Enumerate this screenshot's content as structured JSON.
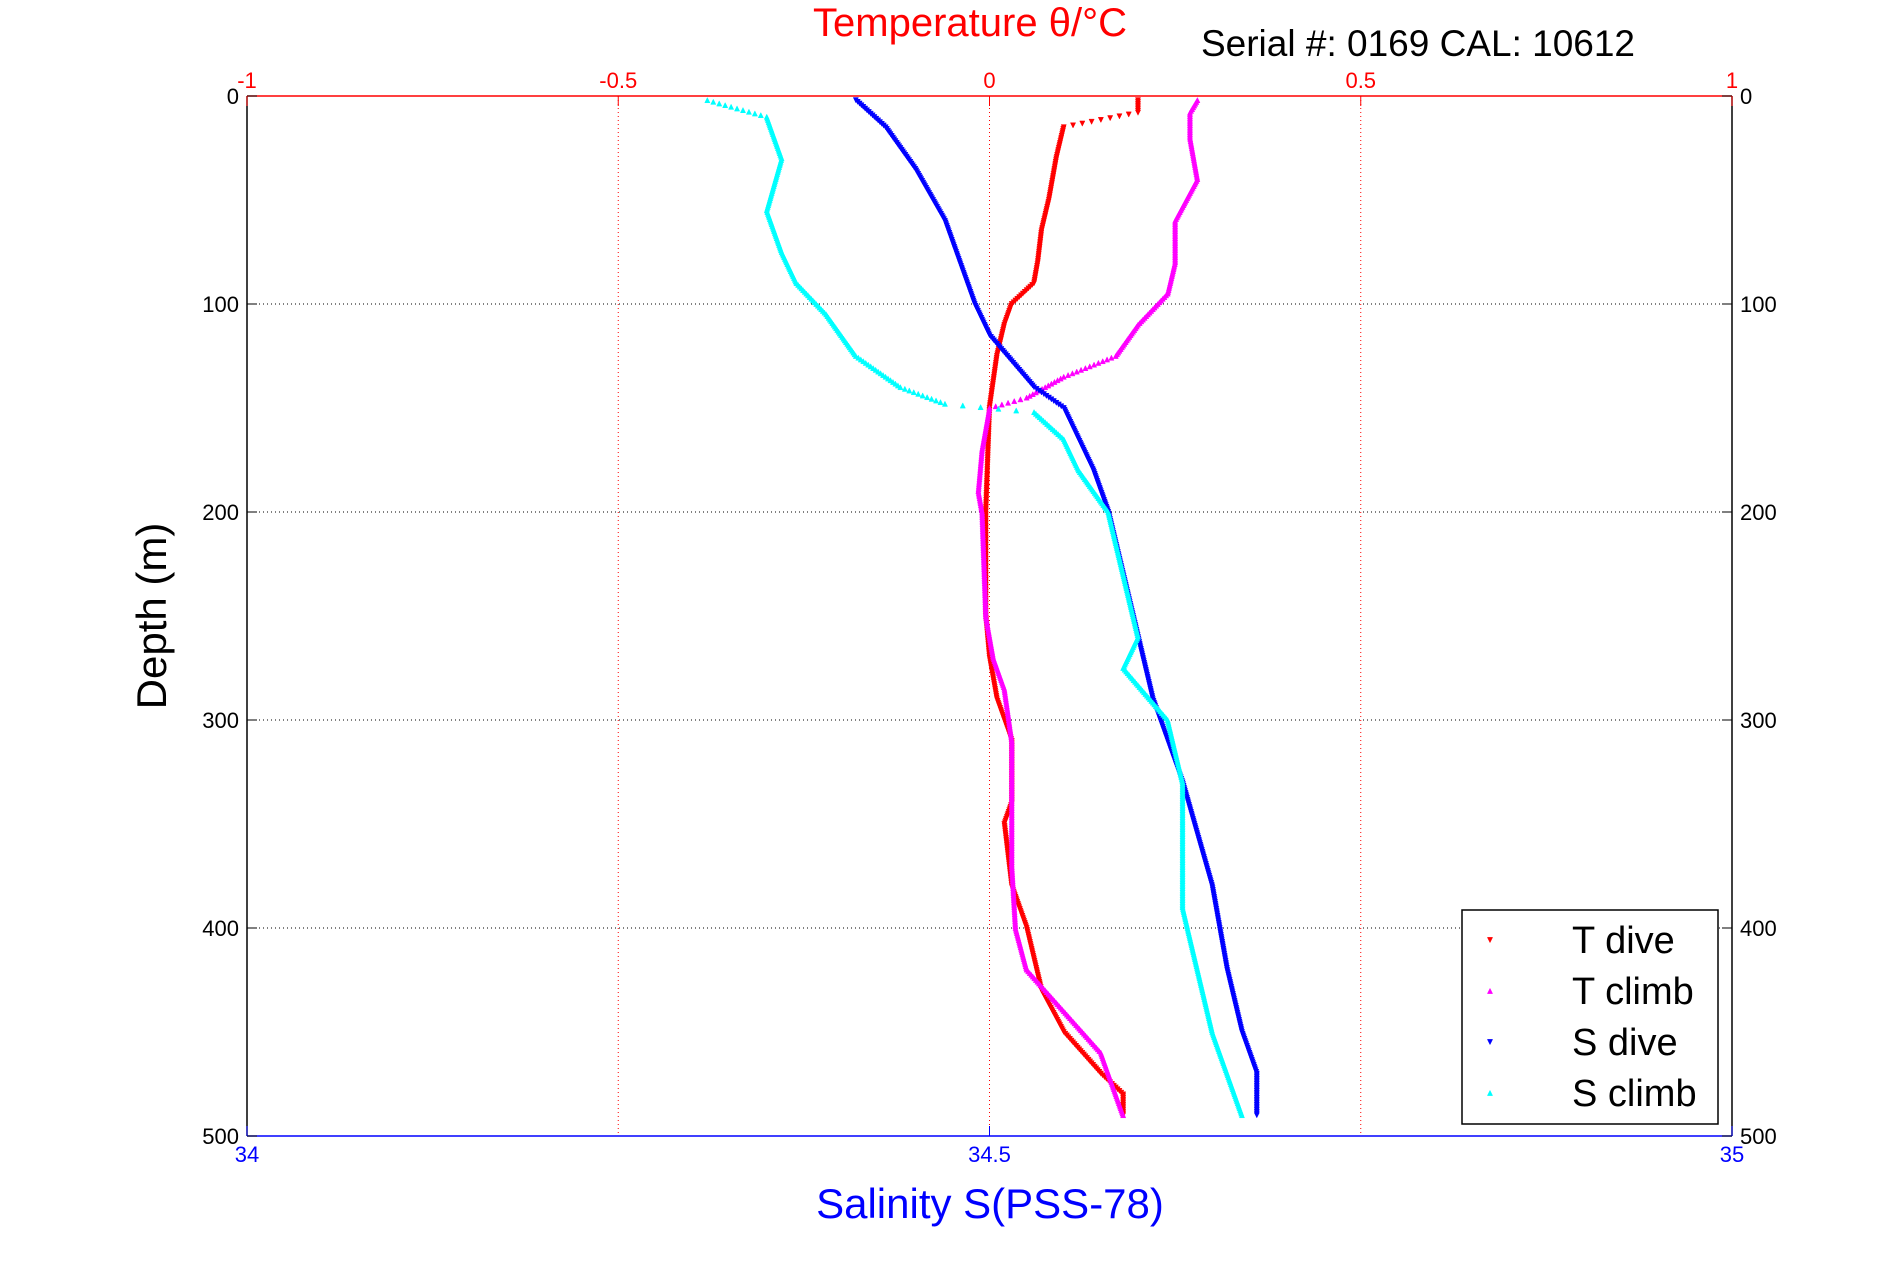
{
  "chart_data": {
    "type": "scatter",
    "title": "Temperature θ/°C",
    "subtitle": "Serial #: 0169 CAL: 10612",
    "ylabel": "Depth (m)",
    "xlabel_bottom": "Salinity S(PSS-78)",
    "xlabel_top": "Temperature θ/°C",
    "y_ticks": [
      "0",
      "100",
      "200",
      "300",
      "400",
      "500"
    ],
    "y_right_ticks": [
      "0",
      "100",
      "200",
      "300",
      "400",
      "500"
    ],
    "x_top_ticks": [
      "-1",
      "-0.5",
      "0",
      "0.5",
      "1"
    ],
    "x_bottom_ticks": [
      "34",
      "34.5",
      "35"
    ],
    "ylim": [
      0,
      500
    ],
    "y_reversed": true,
    "xlim_top": [
      -1,
      1
    ],
    "xlim_bottom": [
      34,
      35
    ],
    "grid": true,
    "legend_position": "bottom-right",
    "series": [
      {
        "name": "T dive",
        "axis": "top",
        "color": "#ff0000",
        "marker": "triangle-down",
        "points": [
          [
            0.2,
            2
          ],
          [
            0.2,
            8
          ],
          [
            0.1,
            15
          ],
          [
            0.09,
            30
          ],
          [
            0.08,
            50
          ],
          [
            0.07,
            65
          ],
          [
            0.065,
            80
          ],
          [
            0.06,
            90
          ],
          [
            0.03,
            100
          ],
          [
            0.02,
            110
          ],
          [
            0.01,
            125
          ],
          [
            0.0,
            150
          ],
          [
            -0.005,
            200
          ],
          [
            -0.005,
            250
          ],
          [
            0.0,
            270
          ],
          [
            0.01,
            290
          ],
          [
            0.03,
            310
          ],
          [
            0.03,
            340
          ],
          [
            0.02,
            350
          ],
          [
            0.03,
            380
          ],
          [
            0.05,
            400
          ],
          [
            0.07,
            430
          ],
          [
            0.1,
            450
          ],
          [
            0.15,
            470
          ],
          [
            0.18,
            480
          ],
          [
            0.18,
            490
          ]
        ]
      },
      {
        "name": "T climb",
        "axis": "top",
        "color": "#ff00ff",
        "marker": "triangle-up",
        "points": [
          [
            0.28,
            2
          ],
          [
            0.27,
            8
          ],
          [
            0.27,
            20
          ],
          [
            0.28,
            40
          ],
          [
            0.25,
            60
          ],
          [
            0.25,
            80
          ],
          [
            0.24,
            95
          ],
          [
            0.2,
            110
          ],
          [
            0.17,
            125
          ],
          [
            0.1,
            135
          ],
          [
            0.05,
            145
          ],
          [
            0.0,
            150
          ],
          [
            -0.01,
            170
          ],
          [
            -0.015,
            190
          ],
          [
            -0.01,
            200
          ],
          [
            -0.005,
            250
          ],
          [
            0.005,
            270
          ],
          [
            0.02,
            285
          ],
          [
            0.03,
            310
          ],
          [
            0.03,
            340
          ],
          [
            0.03,
            370
          ],
          [
            0.035,
            400
          ],
          [
            0.05,
            420
          ],
          [
            0.1,
            440
          ],
          [
            0.15,
            460
          ],
          [
            0.17,
            480
          ],
          [
            0.18,
            490
          ]
        ]
      },
      {
        "name": "S dive",
        "axis": "bottom",
        "color": "#0000ff",
        "marker": "triangle-down",
        "points": [
          [
            34.41,
            2
          ],
          [
            34.43,
            15
          ],
          [
            34.45,
            35
          ],
          [
            34.47,
            60
          ],
          [
            34.48,
            80
          ],
          [
            34.49,
            100
          ],
          [
            34.5,
            115
          ],
          [
            34.53,
            140
          ],
          [
            34.55,
            150
          ],
          [
            34.56,
            165
          ],
          [
            34.57,
            180
          ],
          [
            34.58,
            200
          ],
          [
            34.59,
            230
          ],
          [
            34.6,
            260
          ],
          [
            34.61,
            290
          ],
          [
            34.63,
            330
          ],
          [
            34.65,
            380
          ],
          [
            34.66,
            420
          ],
          [
            34.67,
            450
          ],
          [
            34.68,
            470
          ],
          [
            34.68,
            490
          ]
        ]
      },
      {
        "name": "S climb",
        "axis": "bottom",
        "color": "#00ffff",
        "marker": "triangle-up",
        "points": [
          [
            34.31,
            2
          ],
          [
            34.35,
            10
          ],
          [
            34.36,
            30
          ],
          [
            34.35,
            55
          ],
          [
            34.36,
            75
          ],
          [
            34.37,
            90
          ],
          [
            34.39,
            105
          ],
          [
            34.41,
            125
          ],
          [
            34.44,
            140
          ],
          [
            34.47,
            148
          ],
          [
            34.53,
            152
          ],
          [
            34.55,
            165
          ],
          [
            34.56,
            180
          ],
          [
            34.58,
            200
          ],
          [
            34.59,
            230
          ],
          [
            34.6,
            260
          ],
          [
            34.59,
            275
          ],
          [
            34.62,
            300
          ],
          [
            34.63,
            330
          ],
          [
            34.63,
            360
          ],
          [
            34.63,
            390
          ],
          [
            34.64,
            420
          ],
          [
            34.65,
            450
          ],
          [
            34.66,
            470
          ],
          [
            34.67,
            490
          ]
        ]
      }
    ]
  }
}
